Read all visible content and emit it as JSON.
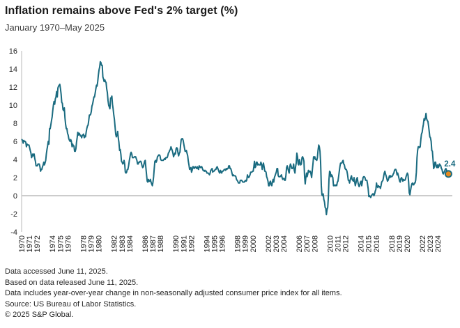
{
  "chart_data": {
    "type": "line",
    "title": "Inflation remains above Fed's 2% target (%)",
    "subtitle": "January 1970–May 2025",
    "ylabel": "",
    "xlabel": "",
    "ylim": [
      -4,
      16
    ],
    "y_ticks": [
      16,
      14,
      12,
      10,
      8,
      6,
      4,
      2,
      0,
      -2,
      -4
    ],
    "x_tick_years": [
      1970,
      1971,
      1972,
      1974,
      1975,
      1976,
      1978,
      1979,
      1980,
      1982,
      1983,
      1984,
      1986,
      1987,
      1988,
      1990,
      1991,
      1992,
      1994,
      1995,
      1996,
      1998,
      1999,
      2000,
      2002,
      2003,
      2004,
      2006,
      2007,
      2008,
      2010,
      2011,
      2012,
      2014,
      2015,
      2016,
      2018,
      2019,
      2020,
      2022,
      2023,
      2024
    ],
    "grid": "zero-line-only",
    "legend": "none",
    "frequency": "monthly",
    "x_range_label": "January 1970 to May 2025",
    "annotation": {
      "label": "2.4",
      "x": "2025-05",
      "y": 2.4
    },
    "colors": {
      "line": "#1a6b80",
      "dot_fill": "#e6891e",
      "dot_ring": "#1a6b80",
      "axis": "#c9c9c9",
      "zero_line": "#aeaeae",
      "tick_text": "#262626"
    },
    "series": [
      {
        "name": "CPI year-over-year change (%)",
        "start": "1970-01",
        "values": [
          6.2,
          6.1,
          5.8,
          6.1,
          6.0,
          6.0,
          5.9,
          5.4,
          5.7,
          5.6,
          5.6,
          5.6,
          5.3,
          5.0,
          4.7,
          4.2,
          4.4,
          4.6,
          4.4,
          4.6,
          4.1,
          3.8,
          3.3,
          3.3,
          3.3,
          3.5,
          3.5,
          3.5,
          3.2,
          2.7,
          2.9,
          2.9,
          3.2,
          3.4,
          3.7,
          3.4,
          3.6,
          3.9,
          4.6,
          5.1,
          5.5,
          6.0,
          5.7,
          7.4,
          7.4,
          7.8,
          8.3,
          8.7,
          9.4,
          10.0,
          10.4,
          10.1,
          10.7,
          10.9,
          11.5,
          10.9,
          11.9,
          12.1,
          12.2,
          12.3,
          11.8,
          11.2,
          10.3,
          10.2,
          9.5,
          9.4,
          9.7,
          8.6,
          7.9,
          7.4,
          7.4,
          6.9,
          6.7,
          6.3,
          6.1,
          6.0,
          6.2,
          6.0,
          5.4,
          5.7,
          5.5,
          5.5,
          4.9,
          4.9,
          5.2,
          5.9,
          6.4,
          7.0,
          6.7,
          6.9,
          6.8,
          6.6,
          6.6,
          6.4,
          6.7,
          6.7,
          6.8,
          6.4,
          6.6,
          6.5,
          7.0,
          7.4,
          7.7,
          7.8,
          8.3,
          8.9,
          8.9,
          9.0,
          9.3,
          9.9,
          10.1,
          10.5,
          10.9,
          10.9,
          11.3,
          11.8,
          12.2,
          12.1,
          12.6,
          13.3,
          13.9,
          14.2,
          14.8,
          14.7,
          14.4,
          14.4,
          13.1,
          12.9,
          12.6,
          12.8,
          12.6,
          12.5,
          11.8,
          11.4,
          10.5,
          10.0,
          9.8,
          9.6,
          10.8,
          10.8,
          11.0,
          10.1,
          9.6,
          8.9,
          8.4,
          7.6,
          6.8,
          6.5,
          6.7,
          7.1,
          6.4,
          5.9,
          5.0,
          5.1,
          4.6,
          3.8,
          3.7,
          3.5,
          3.6,
          3.9,
          3.5,
          2.6,
          2.5,
          2.6,
          2.9,
          2.9,
          3.3,
          3.8,
          4.2,
          4.6,
          4.8,
          4.6,
          4.2,
          4.2,
          4.2,
          4.3,
          4.3,
          4.3,
          4.1,
          3.9,
          3.5,
          3.5,
          3.7,
          3.7,
          3.8,
          3.8,
          3.6,
          3.3,
          3.1,
          3.2,
          3.5,
          3.8,
          3.9,
          3.1,
          2.3,
          1.6,
          1.5,
          1.8,
          1.6,
          1.6,
          1.8,
          1.5,
          1.3,
          1.1,
          1.5,
          2.1,
          3.0,
          3.8,
          3.9,
          3.7,
          3.9,
          4.3,
          4.4,
          4.5,
          4.5,
          4.4,
          4.0,
          3.9,
          3.9,
          3.9,
          3.9,
          4.0,
          4.1,
          4.0,
          4.2,
          4.2,
          4.2,
          4.4,
          4.7,
          4.8,
          5.0,
          5.1,
          5.4,
          5.2,
          5.0,
          4.7,
          4.3,
          4.5,
          4.7,
          4.6,
          5.2,
          5.3,
          5.2,
          4.7,
          4.4,
          4.7,
          4.8,
          5.6,
          6.2,
          6.3,
          6.3,
          6.1,
          5.7,
          5.3,
          4.9,
          4.9,
          5.0,
          4.7,
          4.4,
          3.8,
          3.4,
          2.9,
          3.0,
          3.1,
          2.6,
          2.8,
          3.2,
          3.2,
          3.0,
          3.1,
          3.2,
          3.1,
          3.0,
          3.2,
          3.0,
          2.9,
          3.3,
          3.2,
          3.1,
          3.2,
          3.2,
          3.0,
          2.8,
          2.8,
          2.7,
          2.8,
          2.7,
          2.7,
          2.5,
          2.5,
          2.5,
          2.4,
          2.3,
          2.5,
          2.8,
          2.9,
          3.0,
          2.6,
          2.7,
          2.7,
          2.8,
          2.9,
          2.9,
          3.1,
          3.2,
          3.0,
          2.8,
          2.6,
          2.5,
          2.8,
          2.6,
          2.5,
          2.7,
          2.7,
          2.8,
          2.9,
          2.9,
          2.8,
          3.0,
          2.9,
          3.0,
          3.0,
          3.3,
          3.3,
          3.0,
          3.0,
          2.8,
          2.5,
          2.2,
          2.3,
          2.2,
          2.2,
          2.2,
          2.1,
          1.8,
          1.7,
          1.6,
          1.4,
          1.4,
          1.4,
          1.7,
          1.7,
          1.7,
          1.6,
          1.5,
          1.5,
          1.5,
          1.6,
          1.7,
          1.6,
          1.7,
          2.3,
          2.1,
          2.0,
          2.1,
          2.3,
          2.6,
          2.6,
          2.6,
          2.7,
          2.7,
          3.2,
          3.8,
          3.1,
          3.2,
          3.7,
          3.7,
          3.4,
          3.5,
          3.4,
          3.4,
          3.4,
          3.7,
          3.5,
          2.9,
          3.3,
          3.6,
          3.2,
          2.7,
          2.7,
          2.6,
          2.1,
          1.9,
          1.6,
          1.1,
          1.1,
          1.5,
          1.6,
          1.2,
          1.1,
          1.5,
          1.8,
          1.5,
          2.0,
          2.2,
          2.4,
          2.6,
          3.0,
          3.0,
          2.2,
          2.1,
          2.1,
          2.1,
          2.2,
          2.3,
          2.0,
          1.8,
          1.9,
          1.9,
          1.7,
          1.7,
          2.3,
          3.1,
          3.3,
          3.0,
          2.7,
          2.5,
          3.2,
          3.5,
          3.3,
          3.0,
          3.0,
          3.1,
          3.5,
          2.8,
          2.5,
          3.2,
          3.6,
          4.7,
          4.3,
          3.5,
          3.4,
          4.0,
          3.6,
          3.4,
          3.5,
          4.2,
          4.3,
          4.1,
          3.8,
          2.1,
          1.3,
          2.0,
          2.5,
          2.1,
          2.4,
          2.8,
          2.6,
          2.7,
          2.7,
          2.4,
          2.0,
          2.8,
          3.5,
          4.3,
          4.1,
          4.3,
          4.0,
          4.0,
          3.9,
          4.2,
          5.0,
          5.6,
          5.4,
          4.9,
          3.7,
          1.1,
          0.1,
          0.0,
          0.2,
          -0.4,
          -0.7,
          -1.3,
          -1.4,
          -2.1,
          -1.5,
          -1.3,
          -0.2,
          1.8,
          2.7,
          2.6,
          2.1,
          2.3,
          2.2,
          2.0,
          1.1,
          1.2,
          1.1,
          1.1,
          1.2,
          1.1,
          1.5,
          1.6,
          2.1,
          2.7,
          3.2,
          3.6,
          3.6,
          3.6,
          3.8,
          3.9,
          3.5,
          3.4,
          3.0,
          2.9,
          2.9,
          2.7,
          2.3,
          1.7,
          1.7,
          1.4,
          1.7,
          2.0,
          2.2,
          1.8,
          1.7,
          1.6,
          2.0,
          1.5,
          1.1,
          1.4,
          1.8,
          2.0,
          1.5,
          1.2,
          1.0,
          1.2,
          1.5,
          1.6,
          1.1,
          1.5,
          2.0,
          2.1,
          2.1,
          2.0,
          1.7,
          1.7,
          1.7,
          1.3,
          0.8,
          -0.1,
          0.0,
          -0.1,
          -0.2,
          0.0,
          0.1,
          0.2,
          0.2,
          0.0,
          0.2,
          0.5,
          0.7,
          1.4,
          1.0,
          0.9,
          1.1,
          1.0,
          1.0,
          0.8,
          1.1,
          1.5,
          1.6,
          1.7,
          2.1,
          2.5,
          2.7,
          2.4,
          2.2,
          1.9,
          1.6,
          1.7,
          1.9,
          2.2,
          2.0,
          2.2,
          2.1,
          2.1,
          2.2,
          2.4,
          2.5,
          2.8,
          2.9,
          2.9,
          2.7,
          2.3,
          2.5,
          2.2,
          1.9,
          1.6,
          1.5,
          1.9,
          2.0,
          1.8,
          1.6,
          1.8,
          1.7,
          1.7,
          1.8,
          2.1,
          2.3,
          2.5,
          2.3,
          1.5,
          0.3,
          0.1,
          0.6,
          1.0,
          1.3,
          1.4,
          1.2,
          1.2,
          1.4,
          1.4,
          1.7,
          2.6,
          4.2,
          5.0,
          5.4,
          5.4,
          5.3,
          5.4,
          6.2,
          6.8,
          7.0,
          7.5,
          7.9,
          8.5,
          8.3,
          8.6,
          9.1,
          8.5,
          8.3,
          8.2,
          7.7,
          7.1,
          6.5,
          6.4,
          6.0,
          5.0,
          4.9,
          4.0,
          3.0,
          3.2,
          3.7,
          3.7,
          3.2,
          3.1,
          3.4,
          3.1,
          3.2,
          3.5,
          3.4,
          3.3,
          3.0,
          2.9,
          2.5,
          2.4,
          2.6,
          2.7,
          2.9,
          3.0,
          2.8,
          2.4,
          2.3,
          2.4
        ]
      }
    ]
  },
  "footer": {
    "lines": [
      "Data accessed June 11, 2025.",
      "Based on data released June 11, 2025.",
      "Data includes year-over-year change in non-seasonally adjusted consumer price index for all items.",
      "Source: US Bureau of Labor Statistics.",
      "© 2025 S&P Global."
    ]
  }
}
